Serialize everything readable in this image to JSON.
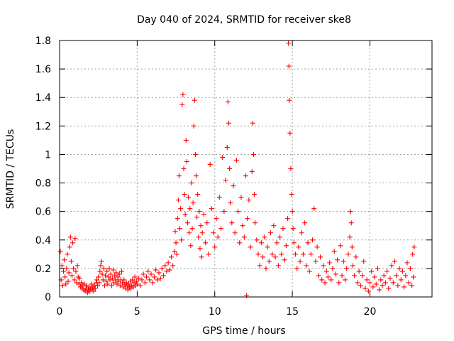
{
  "chart_data": {
    "type": "scatter",
    "title": "Day 040 of 2024, SRMTID for receiver ske8",
    "xlabel": "GPS time / hours",
    "ylabel": "SRMTID / TECUs",
    "xlim": [
      0,
      24
    ],
    "ylim": [
      0,
      1.8
    ],
    "x_ticks": [
      0,
      5,
      10,
      15,
      20
    ],
    "x_tick_labels": [
      "0",
      "5",
      "10",
      "15",
      "20"
    ],
    "y_ticks": [
      0,
      0.2,
      0.4,
      0.6,
      0.8,
      1.0,
      1.2,
      1.4,
      1.6,
      1.8
    ],
    "y_tick_labels": [
      "0",
      "0.2",
      "0.4",
      "0.6",
      "0.8",
      "1",
      "1.2",
      "1.4",
      "1.6",
      "1.8"
    ],
    "grid": true,
    "marker": "plus",
    "color": "#ff0000",
    "series": [
      {
        "name": "SRMTID",
        "points": [
          [
            0.05,
            0.32
          ],
          [
            0.1,
            0.12
          ],
          [
            0.15,
            0.22
          ],
          [
            0.2,
            0.08
          ],
          [
            0.25,
            0.18
          ],
          [
            0.3,
            0.26
          ],
          [
            0.35,
            0.14
          ],
          [
            0.4,
            0.09
          ],
          [
            0.45,
            0.2
          ],
          [
            0.5,
            0.3
          ],
          [
            0.55,
            0.11
          ],
          [
            0.6,
            0.17
          ],
          [
            0.65,
            0.35
          ],
          [
            0.7,
            0.42
          ],
          [
            0.75,
            0.25
          ],
          [
            0.8,
            0.15
          ],
          [
            0.85,
            0.38
          ],
          [
            0.9,
            0.2
          ],
          [
            0.95,
            0.12
          ],
          [
            1.0,
            0.41
          ],
          [
            1.05,
            0.18
          ],
          [
            1.1,
            0.1
          ],
          [
            1.15,
            0.22
          ],
          [
            1.2,
            0.14
          ],
          [
            1.25,
            0.09
          ],
          [
            1.3,
            0.13
          ],
          [
            1.35,
            0.07
          ],
          [
            1.4,
            0.1
          ],
          [
            1.45,
            0.06
          ],
          [
            1.5,
            0.08
          ],
          [
            1.55,
            0.05
          ],
          [
            1.6,
            0.09
          ],
          [
            1.65,
            0.04
          ],
          [
            1.7,
            0.06
          ],
          [
            1.75,
            0.08
          ],
          [
            1.8,
            0.03
          ],
          [
            1.85,
            0.05
          ],
          [
            1.9,
            0.07
          ],
          [
            1.95,
            0.04
          ],
          [
            2.0,
            0.06
          ],
          [
            2.05,
            0.09
          ],
          [
            2.1,
            0.05
          ],
          [
            2.15,
            0.07
          ],
          [
            2.2,
            0.04
          ],
          [
            2.25,
            0.08
          ],
          [
            2.3,
            0.06
          ],
          [
            2.35,
            0.1
          ],
          [
            2.4,
            0.12
          ],
          [
            2.45,
            0.08
          ],
          [
            2.5,
            0.14
          ],
          [
            2.55,
            0.1
          ],
          [
            2.6,
            0.18
          ],
          [
            2.65,
            0.22
          ],
          [
            2.7,
            0.25
          ],
          [
            2.75,
            0.16
          ],
          [
            2.8,
            0.12
          ],
          [
            2.85,
            0.2
          ],
          [
            2.9,
            0.08
          ],
          [
            2.95,
            0.15
          ],
          [
            3.0,
            0.11
          ],
          [
            3.05,
            0.18
          ],
          [
            3.1,
            0.09
          ],
          [
            3.15,
            0.14
          ],
          [
            3.2,
            0.2
          ],
          [
            3.25,
            0.12
          ],
          [
            3.3,
            0.16
          ],
          [
            3.35,
            0.08
          ],
          [
            3.4,
            0.13
          ],
          [
            3.45,
            0.19
          ],
          [
            3.5,
            0.1
          ],
          [
            3.55,
            0.15
          ],
          [
            3.6,
            0.12
          ],
          [
            3.65,
            0.17
          ],
          [
            3.7,
            0.09
          ],
          [
            3.75,
            0.14
          ],
          [
            3.8,
            0.11
          ],
          [
            3.85,
            0.16
          ],
          [
            3.9,
            0.08
          ],
          [
            3.95,
            0.12
          ],
          [
            4.0,
            0.18
          ],
          [
            4.05,
            0.1
          ],
          [
            4.1,
            0.07
          ],
          [
            4.15,
            0.12
          ],
          [
            4.2,
            0.09
          ],
          [
            4.25,
            0.06
          ],
          [
            4.3,
            0.1
          ],
          [
            4.35,
            0.08
          ],
          [
            4.4,
            0.05
          ],
          [
            4.45,
            0.09
          ],
          [
            4.5,
            0.07
          ],
          [
            4.55,
            0.11
          ],
          [
            4.6,
            0.06
          ],
          [
            4.65,
            0.08
          ],
          [
            4.7,
            0.12
          ],
          [
            4.75,
            0.07
          ],
          [
            4.8,
            0.1
          ],
          [
            4.85,
            0.14
          ],
          [
            4.9,
            0.08
          ],
          [
            4.95,
            0.11
          ],
          [
            5.0,
            0.09
          ],
          [
            5.1,
            0.13
          ],
          [
            5.2,
            0.08
          ],
          [
            5.3,
            0.12
          ],
          [
            5.4,
            0.16
          ],
          [
            5.5,
            0.1
          ],
          [
            5.6,
            0.14
          ],
          [
            5.7,
            0.18
          ],
          [
            5.8,
            0.12
          ],
          [
            5.9,
            0.16
          ],
          [
            6.0,
            0.1
          ],
          [
            6.1,
            0.14
          ],
          [
            6.2,
            0.19
          ],
          [
            6.3,
            0.12
          ],
          [
            6.4,
            0.17
          ],
          [
            6.5,
            0.13
          ],
          [
            6.6,
            0.2
          ],
          [
            6.7,
            0.15
          ],
          [
            6.8,
            0.22
          ],
          [
            6.9,
            0.18
          ],
          [
            7.0,
            0.24
          ],
          [
            7.1,
            0.19
          ],
          [
            7.2,
            0.28
          ],
          [
            7.3,
            0.22
          ],
          [
            7.4,
            0.32
          ],
          [
            7.45,
            0.46
          ],
          [
            7.5,
            0.38
          ],
          [
            7.55,
            0.3
          ],
          [
            7.6,
            0.55
          ],
          [
            7.65,
            0.68
          ],
          [
            7.7,
            0.85
          ],
          [
            7.75,
            0.48
          ],
          [
            7.8,
            0.62
          ],
          [
            7.85,
            0.4
          ],
          [
            7.9,
            1.35
          ],
          [
            7.95,
            1.42
          ],
          [
            8.0,
            0.9
          ],
          [
            8.05,
            0.72
          ],
          [
            8.1,
            0.58
          ],
          [
            8.15,
            1.1
          ],
          [
            8.2,
            0.95
          ],
          [
            8.25,
            0.52
          ],
          [
            8.3,
            0.7
          ],
          [
            8.35,
            0.45
          ],
          [
            8.4,
            0.62
          ],
          [
            8.45,
            0.36
          ],
          [
            8.5,
            0.8
          ],
          [
            8.55,
            0.48
          ],
          [
            8.6,
            0.66
          ],
          [
            8.65,
            1.2
          ],
          [
            8.7,
            1.38
          ],
          [
            8.75,
            1.0
          ],
          [
            8.8,
            0.85
          ],
          [
            8.85,
            0.56
          ],
          [
            8.9,
            0.72
          ],
          [
            8.95,
            0.42
          ],
          [
            9.0,
            0.6
          ],
          [
            9.05,
            0.34
          ],
          [
            9.1,
            0.5
          ],
          [
            9.15,
            0.28
          ],
          [
            9.2,
            0.45
          ],
          [
            9.3,
            0.58
          ],
          [
            9.4,
            0.38
          ],
          [
            9.5,
            0.52
          ],
          [
            9.6,
            0.3
          ],
          [
            9.7,
            0.93
          ],
          [
            9.8,
            0.62
          ],
          [
            9.9,
            0.45
          ],
          [
            10.0,
            0.35
          ],
          [
            10.1,
            0.55
          ],
          [
            10.2,
            0.42
          ],
          [
            10.3,
            0.7
          ],
          [
            10.4,
            0.48
          ],
          [
            10.5,
            0.98
          ],
          [
            10.6,
            0.6
          ],
          [
            10.7,
            0.82
          ],
          [
            10.8,
            1.05
          ],
          [
            10.85,
            1.37
          ],
          [
            10.9,
            1.22
          ],
          [
            10.95,
            0.9
          ],
          [
            11.0,
            0.66
          ],
          [
            11.1,
            0.52
          ],
          [
            11.2,
            0.78
          ],
          [
            11.3,
            0.45
          ],
          [
            11.4,
            0.96
          ],
          [
            11.5,
            0.6
          ],
          [
            11.6,
            0.38
          ],
          [
            11.7,
            0.7
          ],
          [
            11.8,
            0.5
          ],
          [
            11.9,
            0.42
          ],
          [
            12.0,
            0.85
          ],
          [
            12.05,
            0.01
          ],
          [
            12.1,
            0.55
          ],
          [
            12.2,
            0.68
          ],
          [
            12.3,
            0.35
          ],
          [
            12.4,
            0.88
          ],
          [
            12.45,
            1.22
          ],
          [
            12.5,
            1.0
          ],
          [
            12.55,
            0.72
          ],
          [
            12.6,
            0.52
          ],
          [
            12.7,
            0.4
          ],
          [
            12.8,
            0.3
          ],
          [
            12.9,
            0.22
          ],
          [
            13.0,
            0.38
          ],
          [
            13.1,
            0.28
          ],
          [
            13.2,
            0.42
          ],
          [
            13.3,
            0.2
          ],
          [
            13.4,
            0.35
          ],
          [
            13.5,
            0.25
          ],
          [
            13.6,
            0.45
          ],
          [
            13.7,
            0.3
          ],
          [
            13.8,
            0.5
          ],
          [
            13.9,
            0.28
          ],
          [
            14.0,
            0.38
          ],
          [
            14.1,
            0.22
          ],
          [
            14.2,
            0.42
          ],
          [
            14.3,
            0.3
          ],
          [
            14.4,
            0.48
          ],
          [
            14.5,
            0.26
          ],
          [
            14.6,
            0.36
          ],
          [
            14.7,
            0.55
          ],
          [
            14.75,
            1.78
          ],
          [
            14.78,
            1.62
          ],
          [
            14.8,
            1.38
          ],
          [
            14.85,
            1.15
          ],
          [
            14.9,
            0.9
          ],
          [
            14.95,
            0.72
          ],
          [
            15.0,
            0.6
          ],
          [
            15.05,
            0.48
          ],
          [
            15.1,
            0.38
          ],
          [
            15.2,
            0.3
          ],
          [
            15.3,
            0.2
          ],
          [
            15.4,
            0.35
          ],
          [
            15.5,
            0.25
          ],
          [
            15.6,
            0.45
          ],
          [
            15.7,
            0.3
          ],
          [
            15.8,
            0.52
          ],
          [
            15.9,
            0.22
          ],
          [
            16.0,
            0.38
          ],
          [
            16.1,
            0.18
          ],
          [
            16.2,
            0.3
          ],
          [
            16.3,
            0.4
          ],
          [
            16.4,
            0.62
          ],
          [
            16.5,
            0.25
          ],
          [
            16.6,
            0.35
          ],
          [
            16.7,
            0.15
          ],
          [
            16.8,
            0.28
          ],
          [
            16.9,
            0.12
          ],
          [
            17.0,
            0.22
          ],
          [
            17.1,
            0.1
          ],
          [
            17.2,
            0.18
          ],
          [
            17.3,
            0.14
          ],
          [
            17.4,
            0.24
          ],
          [
            17.5,
            0.12
          ],
          [
            17.6,
            0.2
          ],
          [
            17.7,
            0.32
          ],
          [
            17.8,
            0.16
          ],
          [
            17.9,
            0.26
          ],
          [
            18.0,
            0.1
          ],
          [
            18.1,
            0.36
          ],
          [
            18.2,
            0.15
          ],
          [
            18.3,
            0.25
          ],
          [
            18.4,
            0.12
          ],
          [
            18.5,
            0.2
          ],
          [
            18.6,
            0.3
          ],
          [
            18.7,
            0.42
          ],
          [
            18.75,
            0.6
          ],
          [
            18.8,
            0.52
          ],
          [
            18.85,
            0.35
          ],
          [
            18.9,
            0.22
          ],
          [
            19.0,
            0.15
          ],
          [
            19.1,
            0.28
          ],
          [
            19.2,
            0.1
          ],
          [
            19.3,
            0.18
          ],
          [
            19.4,
            0.08
          ],
          [
            19.5,
            0.15
          ],
          [
            19.6,
            0.25
          ],
          [
            19.7,
            0.06
          ],
          [
            19.8,
            0.12
          ],
          [
            19.9,
            0.04
          ],
          [
            20.0,
            0.1
          ],
          [
            20.1,
            0.18
          ],
          [
            20.2,
            0.07
          ],
          [
            20.3,
            0.14
          ],
          [
            20.4,
            0.09
          ],
          [
            20.5,
            0.2
          ],
          [
            20.6,
            0.05
          ],
          [
            20.7,
            0.12
          ],
          [
            20.8,
            0.08
          ],
          [
            20.9,
            0.15
          ],
          [
            21.0,
            0.1
          ],
          [
            21.1,
            0.18
          ],
          [
            21.2,
            0.06
          ],
          [
            21.3,
            0.13
          ],
          [
            21.4,
            0.22
          ],
          [
            21.5,
            0.1
          ],
          [
            21.6,
            0.25
          ],
          [
            21.7,
            0.15
          ],
          [
            21.8,
            0.08
          ],
          [
            21.9,
            0.2
          ],
          [
            22.0,
            0.12
          ],
          [
            22.1,
            0.18
          ],
          [
            22.2,
            0.07
          ],
          [
            22.3,
            0.15
          ],
          [
            22.4,
            0.24
          ],
          [
            22.5,
            0.1
          ],
          [
            22.6,
            0.2
          ],
          [
            22.7,
            0.08
          ],
          [
            22.75,
            0.3
          ],
          [
            22.8,
            0.14
          ],
          [
            22.85,
            0.35
          ]
        ]
      }
    ]
  }
}
